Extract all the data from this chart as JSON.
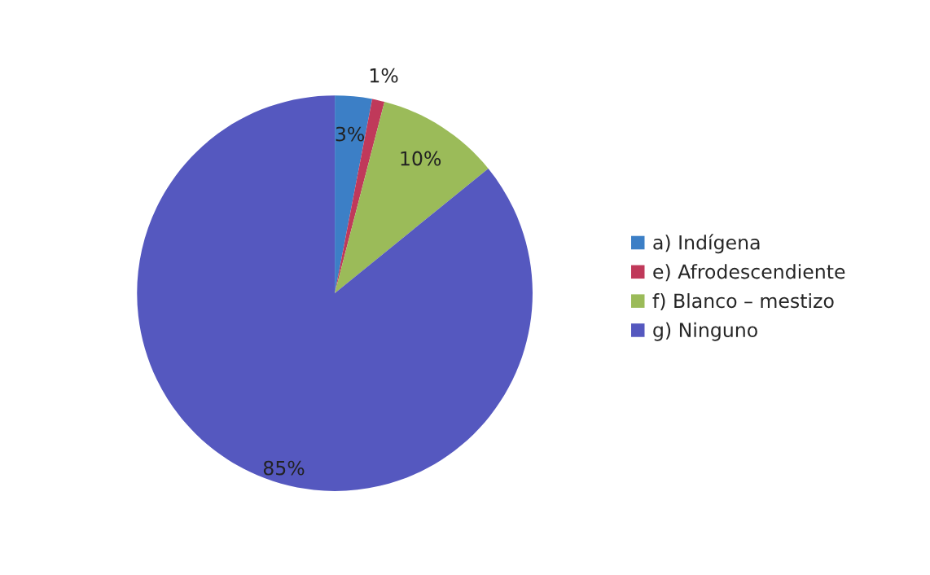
{
  "chart_data": {
    "type": "pie",
    "categories": [
      "a) Indígena",
      "e) Afrodescendiente",
      "f) Blanco – mestizo",
      "g) Ninguno"
    ],
    "values": [
      3,
      1,
      10,
      85
    ],
    "colors": [
      "#3c7fc6",
      "#c0395a",
      "#9bbb59",
      "#5558bf"
    ],
    "value_labels": [
      "3%",
      "1%",
      "10%",
      "85%"
    ],
    "legend": "right"
  }
}
